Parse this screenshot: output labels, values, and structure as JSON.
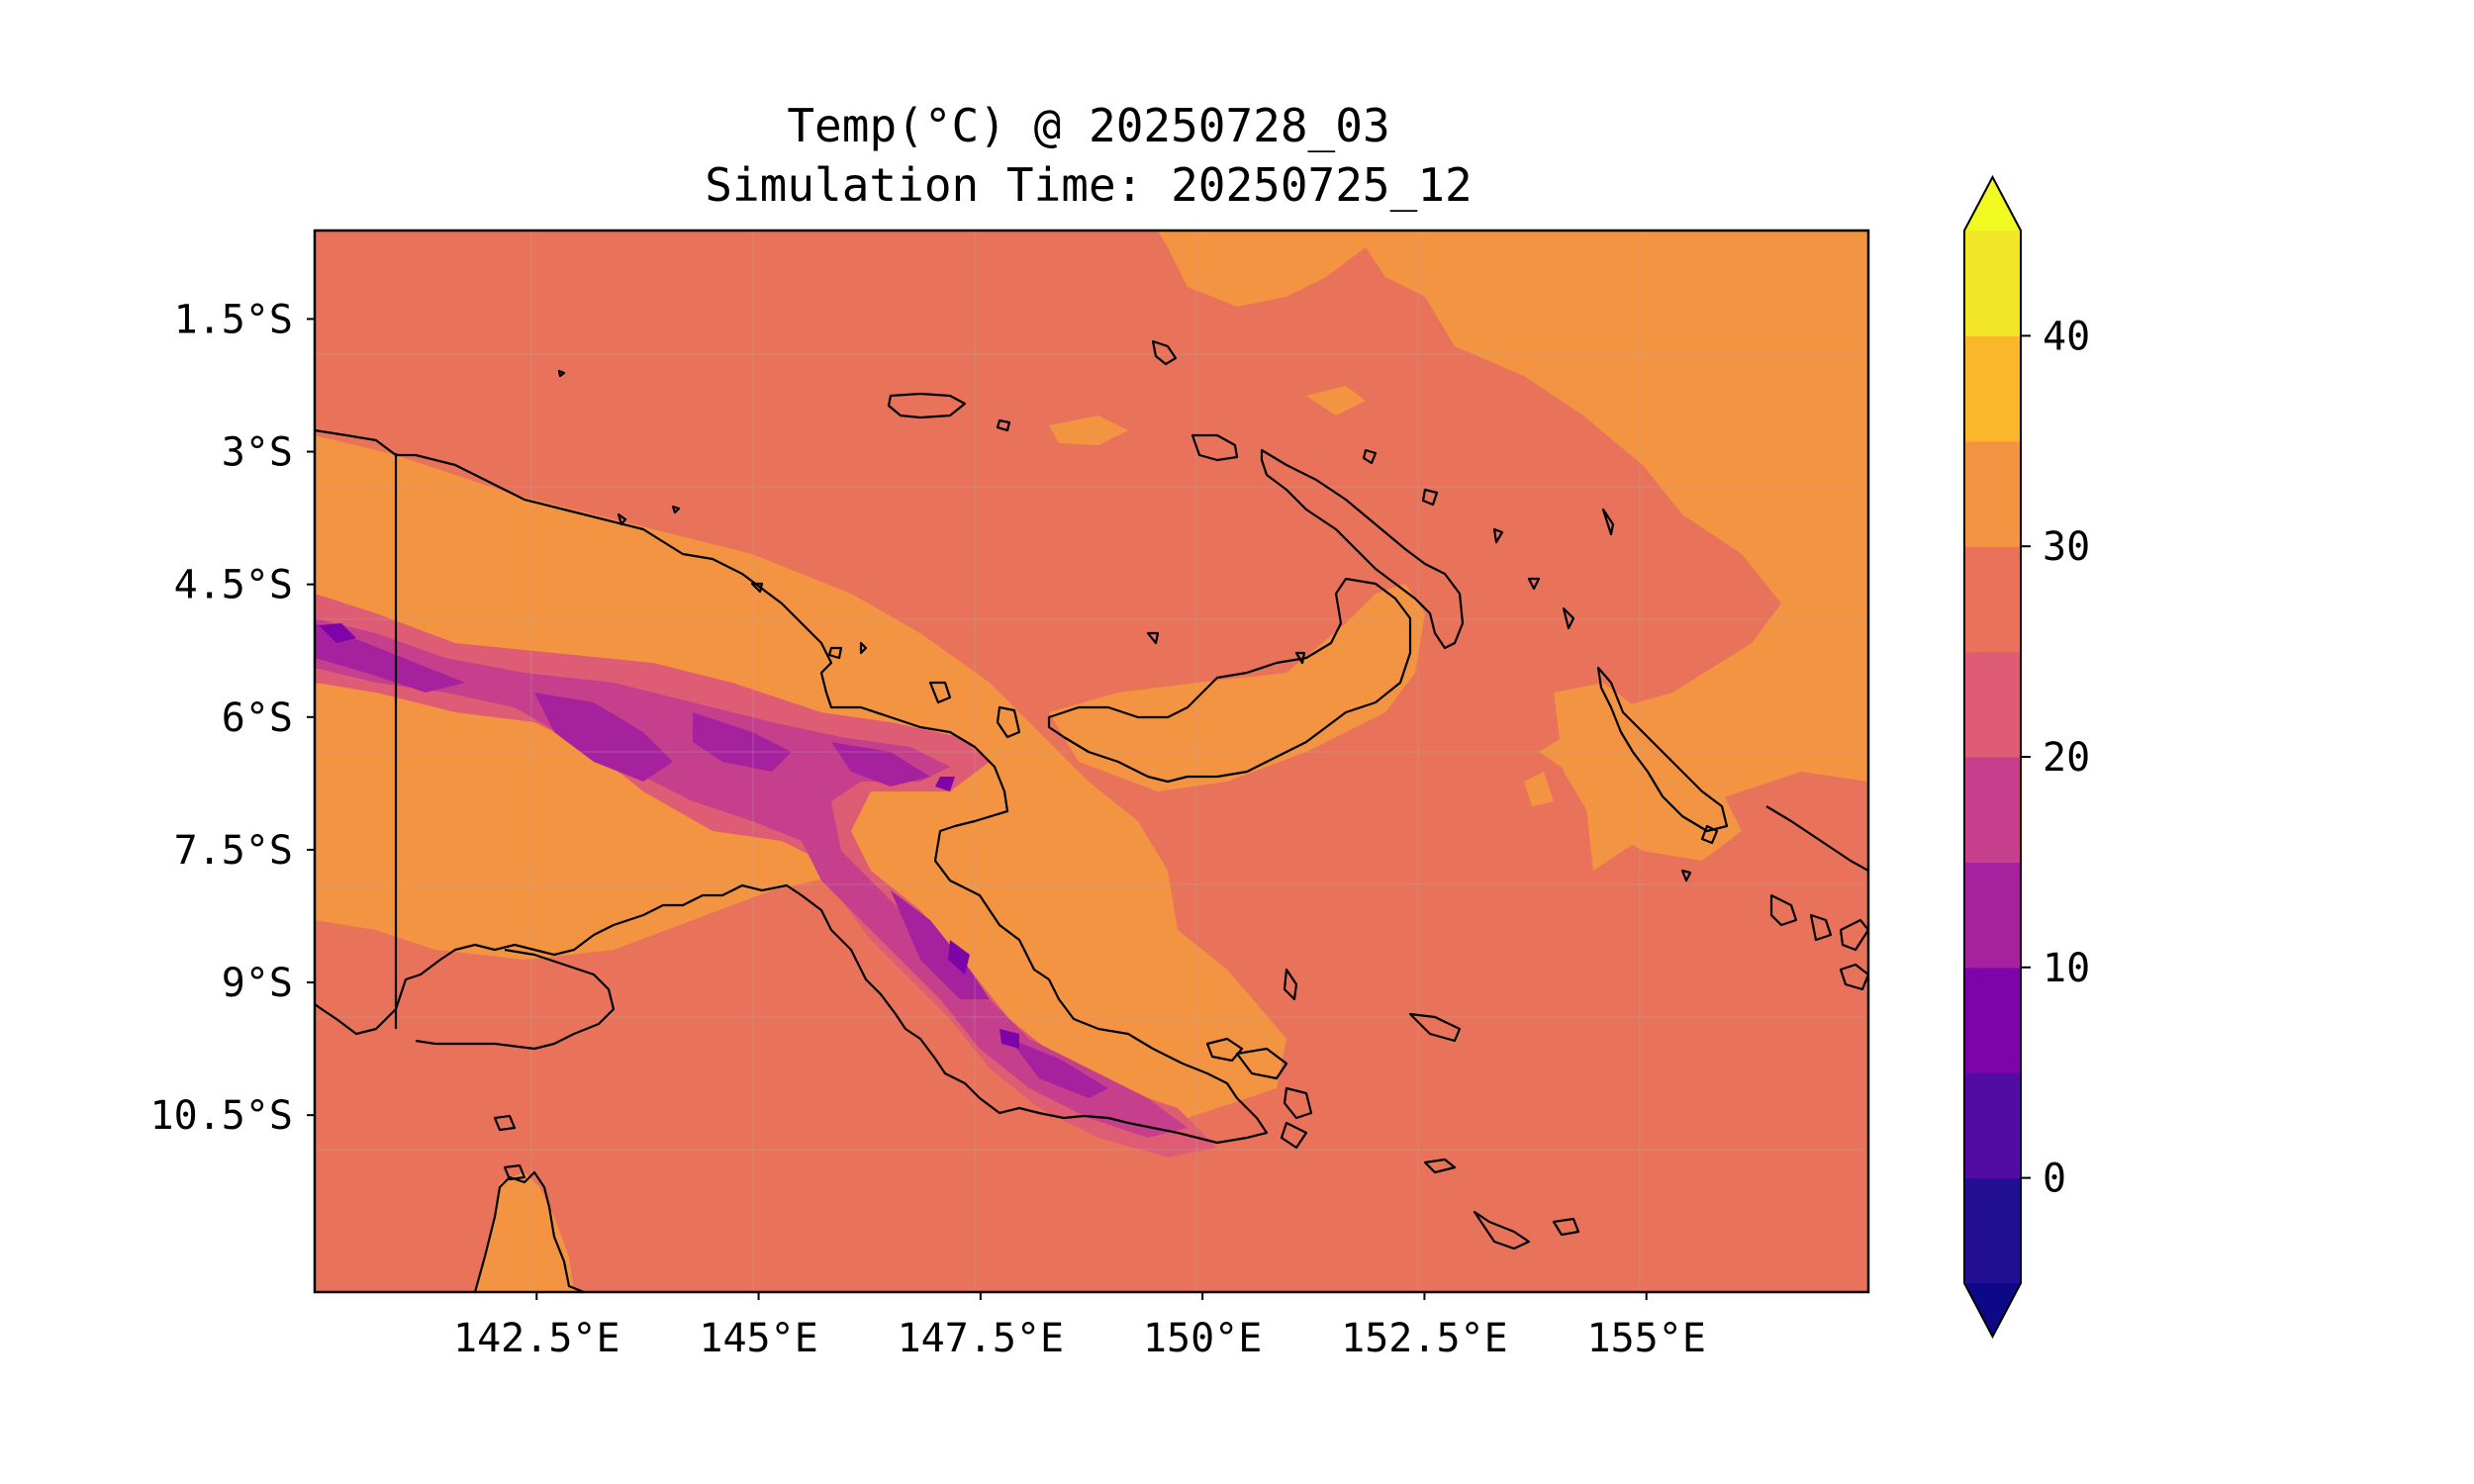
{
  "title": {
    "line1": "Temp(°C) @ 20250728_03",
    "line2": "Simulation Time: 20250725_12"
  },
  "map": {
    "projection": "PlateCarree",
    "lon_range": [
      140,
      157.5
    ],
    "lat_range": [
      -12.5,
      -0.5
    ],
    "field": "2m temperature",
    "units": "°C",
    "x_ticks": [
      {
        "value": 142.5,
        "label": "142.5°E"
      },
      {
        "value": 145,
        "label": "145°E"
      },
      {
        "value": 147.5,
        "label": "147.5°E"
      },
      {
        "value": 150,
        "label": "150°E"
      },
      {
        "value": 152.5,
        "label": "152.5°E"
      },
      {
        "value": 155,
        "label": "155°E"
      }
    ],
    "y_ticks": [
      {
        "value": -1.5,
        "label": "1.5°S"
      },
      {
        "value": -3,
        "label": "3°S"
      },
      {
        "value": -4.5,
        "label": "4.5°S"
      },
      {
        "value": -6,
        "label": "6°S"
      },
      {
        "value": -7.5,
        "label": "7.5°S"
      },
      {
        "value": -9,
        "label": "9°S"
      },
      {
        "value": -10.5,
        "label": "10.5°S"
      }
    ],
    "gridlines": true
  },
  "colorbar": {
    "min": -5,
    "max": 45,
    "extend": "both",
    "levels": [
      -5,
      0,
      5,
      10,
      15,
      20,
      25,
      30,
      35,
      40,
      45
    ],
    "colors": [
      "#230f91",
      "#520ca4",
      "#7d04a8",
      "#a6219d",
      "#c53f8d",
      "#df5d74",
      "#e8735a",
      "#f39443",
      "#fab72c",
      "#f2e727"
    ],
    "under_color": "#0d0887",
    "over_color": "#f0f921",
    "ticks": [
      {
        "value": 0,
        "label": "0"
      },
      {
        "value": 10,
        "label": "10"
      },
      {
        "value": 20,
        "label": "20"
      },
      {
        "value": 30,
        "label": "30"
      },
      {
        "value": 40,
        "label": "40"
      }
    ]
  }
}
